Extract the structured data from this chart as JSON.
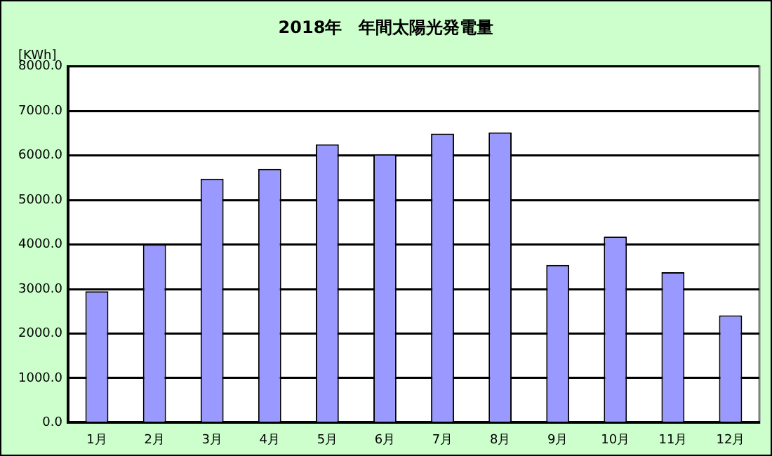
{
  "chart_data": {
    "type": "bar",
    "title": "2018年　年間太陽光発電量",
    "ylabel": "[KWh]",
    "categories": [
      "1月",
      "2月",
      "3月",
      "4月",
      "5月",
      "6月",
      "7月",
      "8月",
      "9月",
      "10月",
      "11月",
      "12月"
    ],
    "values": [
      2950,
      4000,
      5480,
      5700,
      6250,
      6030,
      6490,
      6520,
      3540,
      4180,
      3380,
      2410
    ],
    "color": "#9999ff",
    "ylim": [
      0,
      8000
    ],
    "yticks": [
      {
        "value": 0,
        "label": "0.0"
      },
      {
        "value": 1000,
        "label": "1000.0"
      },
      {
        "value": 2000,
        "label": "2000.0"
      },
      {
        "value": 3000,
        "label": "3000.0"
      },
      {
        "value": 4000,
        "label": "4000.0"
      },
      {
        "value": 5000,
        "label": "5000.0"
      },
      {
        "value": 6000,
        "label": "6000.0"
      },
      {
        "value": 7000,
        "label": "7000.0"
      },
      {
        "value": 8000,
        "label": "8000.0"
      }
    ],
    "grid": "y",
    "legend": false
  }
}
